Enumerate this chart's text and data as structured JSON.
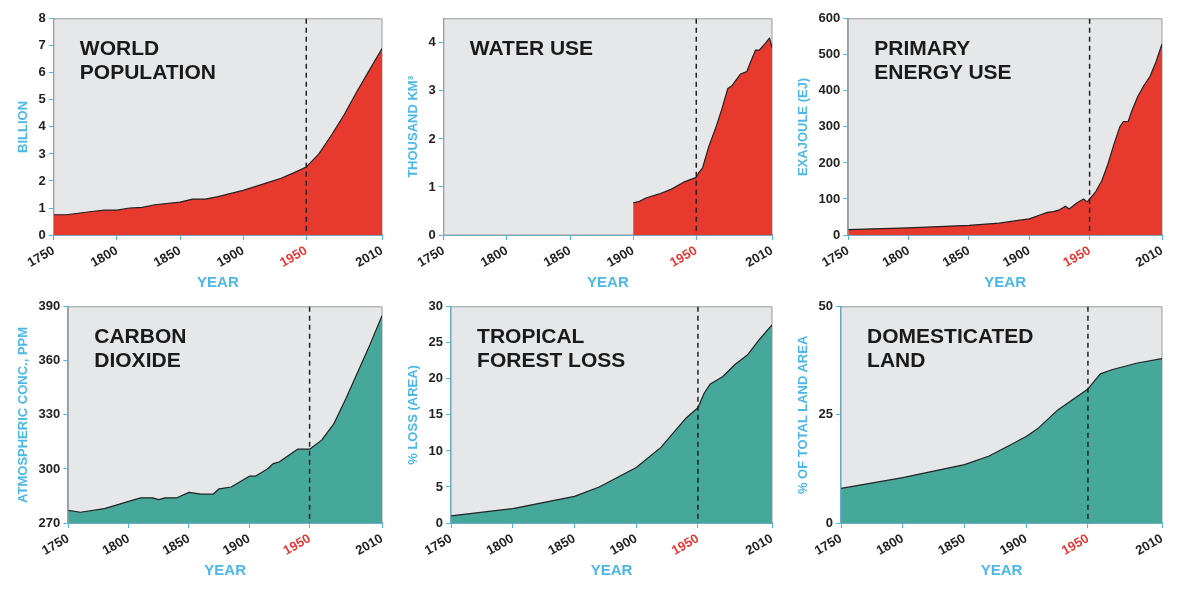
{
  "chart_data": [
    {
      "type": "area",
      "title": "WORLD POPULATION",
      "ylabel": "BILLION",
      "xlabel": "YEAR",
      "xlim": [
        1750,
        2010
      ],
      "xticks": [
        1750,
        1800,
        1850,
        1900,
        1950,
        2010
      ],
      "ylim": [
        0,
        8
      ],
      "yticks": [
        0,
        1,
        2,
        3,
        4,
        5,
        6,
        7,
        8
      ],
      "grid": false,
      "ref_lines": [
        {
          "axis": "x",
          "value": 1950,
          "line_style": "dashed",
          "color": "#222222"
        }
      ],
      "series": [
        {
          "color": "#e8392f",
          "x": [
            1750,
            1760,
            1780,
            1790,
            1800,
            1810,
            1820,
            1830,
            1850,
            1860,
            1870,
            1880,
            1900,
            1910,
            1920,
            1930,
            1940,
            1950,
            1960,
            1970,
            1980,
            1990,
            2000,
            2010
          ],
          "values": [
            0.75,
            0.75,
            0.87,
            0.92,
            0.92,
            1.0,
            1.02,
            1.12,
            1.22,
            1.33,
            1.33,
            1.42,
            1.65,
            1.8,
            1.95,
            2.1,
            2.3,
            2.52,
            3.0,
            3.7,
            4.45,
            5.3,
            6.1,
            6.9
          ]
        }
      ]
    },
    {
      "type": "area",
      "title": "WATER USE",
      "ylabel": "THOUSAND KM³",
      "xlabel": "YEAR",
      "xlim": [
        1750,
        2010
      ],
      "xticks": [
        1750,
        1800,
        1850,
        1900,
        1950,
        2010
      ],
      "ylim": [
        0,
        4.5
      ],
      "yticks": [
        0,
        1,
        2,
        3,
        4
      ],
      "grid": false,
      "ref_lines": [
        {
          "axis": "x",
          "value": 1950,
          "line_style": "dashed",
          "color": "#222222"
        }
      ],
      "series": [
        {
          "color": "#e8392f",
          "x": [
            1900,
            1905,
            1910,
            1920,
            1930,
            1940,
            1950,
            1952,
            1955,
            1960,
            1965,
            1970,
            1975,
            1978,
            1985,
            1990,
            1993,
            1997,
            2000,
            2005,
            2008,
            2010
          ],
          "values": [
            0.67,
            0.7,
            0.77,
            0.85,
            0.95,
            1.1,
            1.2,
            1.3,
            1.4,
            1.85,
            2.2,
            2.6,
            3.05,
            3.1,
            3.35,
            3.4,
            3.6,
            3.85,
            3.85,
            4.0,
            4.1,
            3.9
          ]
        }
      ]
    },
    {
      "type": "area",
      "title": "PRIMARY ENERGY USE",
      "ylabel": "EXAJOULE (EJ)",
      "xlabel": "YEAR",
      "xlim": [
        1750,
        2010
      ],
      "xticks": [
        1750,
        1800,
        1850,
        1900,
        1950,
        2010
      ],
      "ylim": [
        0,
        600
      ],
      "yticks": [
        0,
        100,
        200,
        300,
        400,
        500,
        600
      ],
      "grid": false,
      "ref_lines": [
        {
          "axis": "x",
          "value": 1950,
          "line_style": "dashed",
          "color": "#222222"
        }
      ],
      "series": [
        {
          "color": "#e8392f",
          "x": [
            1750,
            1800,
            1850,
            1875,
            1900,
            1910,
            1915,
            1920,
            1925,
            1930,
            1933,
            1940,
            1945,
            1948,
            1950,
            1955,
            1960,
            1965,
            1970,
            1975,
            1978,
            1982,
            1985,
            1990,
            1995,
            2000,
            2005,
            2010
          ],
          "values": [
            15,
            20,
            27,
            33,
            45,
            57,
            63,
            65,
            70,
            80,
            72,
            90,
            100,
            92,
            100,
            120,
            150,
            195,
            250,
            300,
            315,
            315,
            345,
            385,
            415,
            440,
            480,
            530
          ]
        }
      ]
    },
    {
      "type": "area",
      "title": "CARBON DIOXIDE",
      "ylabel": "ATMOSPHERIC CONC., PPM",
      "xlabel": "YEAR",
      "xlim": [
        1750,
        2010
      ],
      "xticks": [
        1750,
        1800,
        1850,
        1900,
        1950,
        2010
      ],
      "ylim": [
        270,
        390
      ],
      "yticks": [
        270,
        300,
        330,
        360,
        390
      ],
      "grid": false,
      "ref_lines": [
        {
          "axis": "x",
          "value": 1950,
          "line_style": "dashed",
          "color": "#222222"
        }
      ],
      "series": [
        {
          "color": "#46a89a",
          "x": [
            1750,
            1760,
            1780,
            1800,
            1810,
            1820,
            1825,
            1830,
            1840,
            1850,
            1860,
            1870,
            1875,
            1885,
            1900,
            1905,
            1915,
            1920,
            1925,
            1940,
            1950,
            1960,
            1970,
            1980,
            1990,
            2000,
            2010
          ],
          "values": [
            277,
            276,
            278,
            282,
            284,
            284,
            283,
            284,
            284,
            287,
            286,
            286,
            289,
            290,
            296,
            296,
            300,
            303,
            304,
            311,
            311,
            316,
            325,
            339,
            354,
            369,
            385
          ]
        }
      ]
    },
    {
      "type": "area",
      "title": "TROPICAL FOREST LOSS",
      "ylabel": "% LOSS (AREA)",
      "xlabel": "YEAR",
      "xlim": [
        1750,
        2010
      ],
      "xticks": [
        1750,
        1800,
        1850,
        1900,
        1950,
        2010
      ],
      "ylim": [
        0,
        30
      ],
      "yticks": [
        0,
        5,
        10,
        15,
        20,
        25,
        30
      ],
      "grid": false,
      "ref_lines": [
        {
          "axis": "x",
          "value": 1950,
          "line_style": "dashed",
          "color": "#222222"
        }
      ],
      "series": [
        {
          "color": "#46a89a",
          "x": [
            1750,
            1800,
            1850,
            1870,
            1900,
            1920,
            1930,
            1940,
            1950,
            1955,
            1960,
            1970,
            1980,
            1990,
            2000,
            2010
          ],
          "values": [
            1,
            2,
            3.7,
            5,
            7.7,
            10.5,
            12.5,
            14.5,
            16,
            18,
            19.3,
            20.3,
            22,
            23.3,
            25.5,
            27.5
          ]
        }
      ]
    },
    {
      "type": "area",
      "title": "DOMESTICATED LAND",
      "ylabel": "% OF TOTAL LAND AREA",
      "xlabel": "YEAR",
      "xlim": [
        1750,
        2010
      ],
      "xticks": [
        1750,
        1800,
        1850,
        1900,
        1950,
        2010
      ],
      "ylim": [
        0,
        50
      ],
      "yticks": [
        0,
        25,
        50
      ],
      "grid": false,
      "ref_lines": [
        {
          "axis": "x",
          "value": 1950,
          "line_style": "dashed",
          "color": "#222222"
        }
      ],
      "series": [
        {
          "color": "#46a89a",
          "x": [
            1750,
            1800,
            1850,
            1870,
            1900,
            1910,
            1925,
            1950,
            1960,
            1970,
            1990,
            2010
          ],
          "values": [
            8,
            10.5,
            13.5,
            15.5,
            20,
            22,
            26,
            31,
            34.5,
            35.5,
            37,
            38
          ]
        }
      ]
    }
  ]
}
